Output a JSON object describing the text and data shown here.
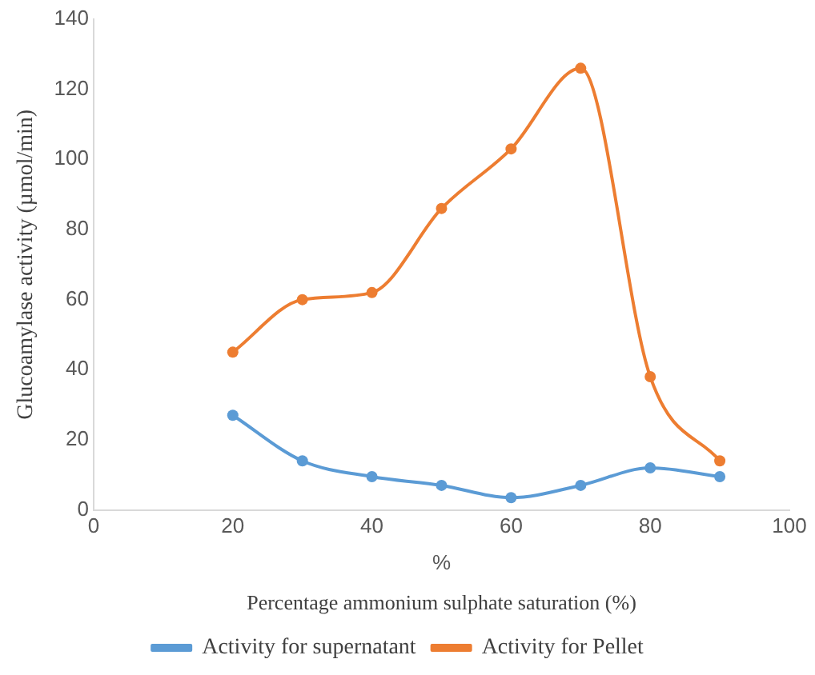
{
  "chart_data": {
    "type": "line",
    "xlabel": "%",
    "ylabel": "Glucoamylase activity (µmol/min)",
    "annotations": [
      "Percentage ammonium sulphate saturation (%)"
    ],
    "x": [
      20,
      30,
      40,
      50,
      60,
      70,
      80,
      90
    ],
    "series": [
      {
        "name": "Activity for supernatant",
        "color": "#5b9bd5",
        "values": [
          27,
          14,
          9.5,
          7,
          3.5,
          7,
          12,
          9.5
        ]
      },
      {
        "name": "Activity for Pellet",
        "color": "#ed7d31",
        "values": [
          45,
          60,
          62,
          86,
          103,
          126,
          38,
          14
        ]
      }
    ],
    "xlim": [
      0,
      100
    ],
    "xticks": [
      0,
      20,
      40,
      60,
      80,
      100
    ],
    "ylim": [
      0,
      140
    ],
    "yticks": [
      0,
      20,
      40,
      60,
      80,
      100,
      120,
      140
    ],
    "grid": false,
    "legend": "bottom",
    "marker": "circle",
    "line_style": "solid"
  }
}
